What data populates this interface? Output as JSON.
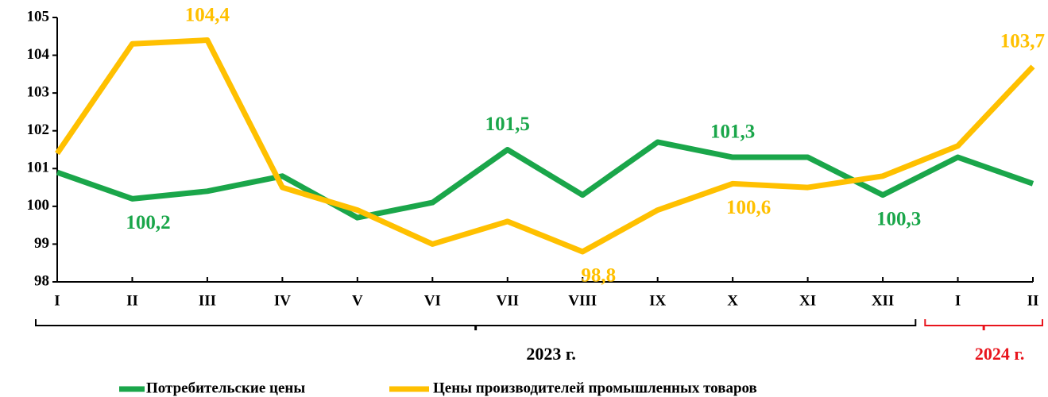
{
  "chart_data": {
    "type": "line",
    "categories": [
      "I",
      "II",
      "III",
      "IV",
      "V",
      "VI",
      "VII",
      "VIII",
      "IX",
      "X",
      "XI",
      "XII",
      "I",
      "II"
    ],
    "series": [
      {
        "name": "Потребительские цены",
        "color": "#1aa64a",
        "values": [
          100.9,
          100.2,
          100.4,
          100.8,
          99.7,
          100.1,
          101.5,
          100.3,
          101.7,
          101.3,
          101.3,
          100.3,
          101.3,
          100.6
        ],
        "value_labels": [
          null,
          "100,2",
          null,
          null,
          null,
          null,
          "101,5",
          null,
          null,
          "101,3",
          null,
          "100,3",
          null,
          null
        ]
      },
      {
        "name": "Цены производителей промышленных товаров",
        "color": "#ffc000",
        "values": [
          101.4,
          104.3,
          104.4,
          100.5,
          99.9,
          99.0,
          99.6,
          98.8,
          99.9,
          100.6,
          100.5,
          100.8,
          101.6,
          103.7
        ],
        "value_labels": [
          null,
          null,
          "104,4",
          null,
          null,
          null,
          null,
          "98,8",
          null,
          "100,6",
          null,
          null,
          null,
          "103,7"
        ]
      }
    ],
    "periods": [
      {
        "label": "2023 г.",
        "count": 12,
        "color": "#000000"
      },
      {
        "label": "2024 г.",
        "count": 2,
        "color": "#e8141c"
      }
    ],
    "ylim": [
      98,
      105
    ],
    "yticks": [
      98,
      99,
      100,
      101,
      102,
      103,
      104,
      105
    ],
    "grid": false
  }
}
